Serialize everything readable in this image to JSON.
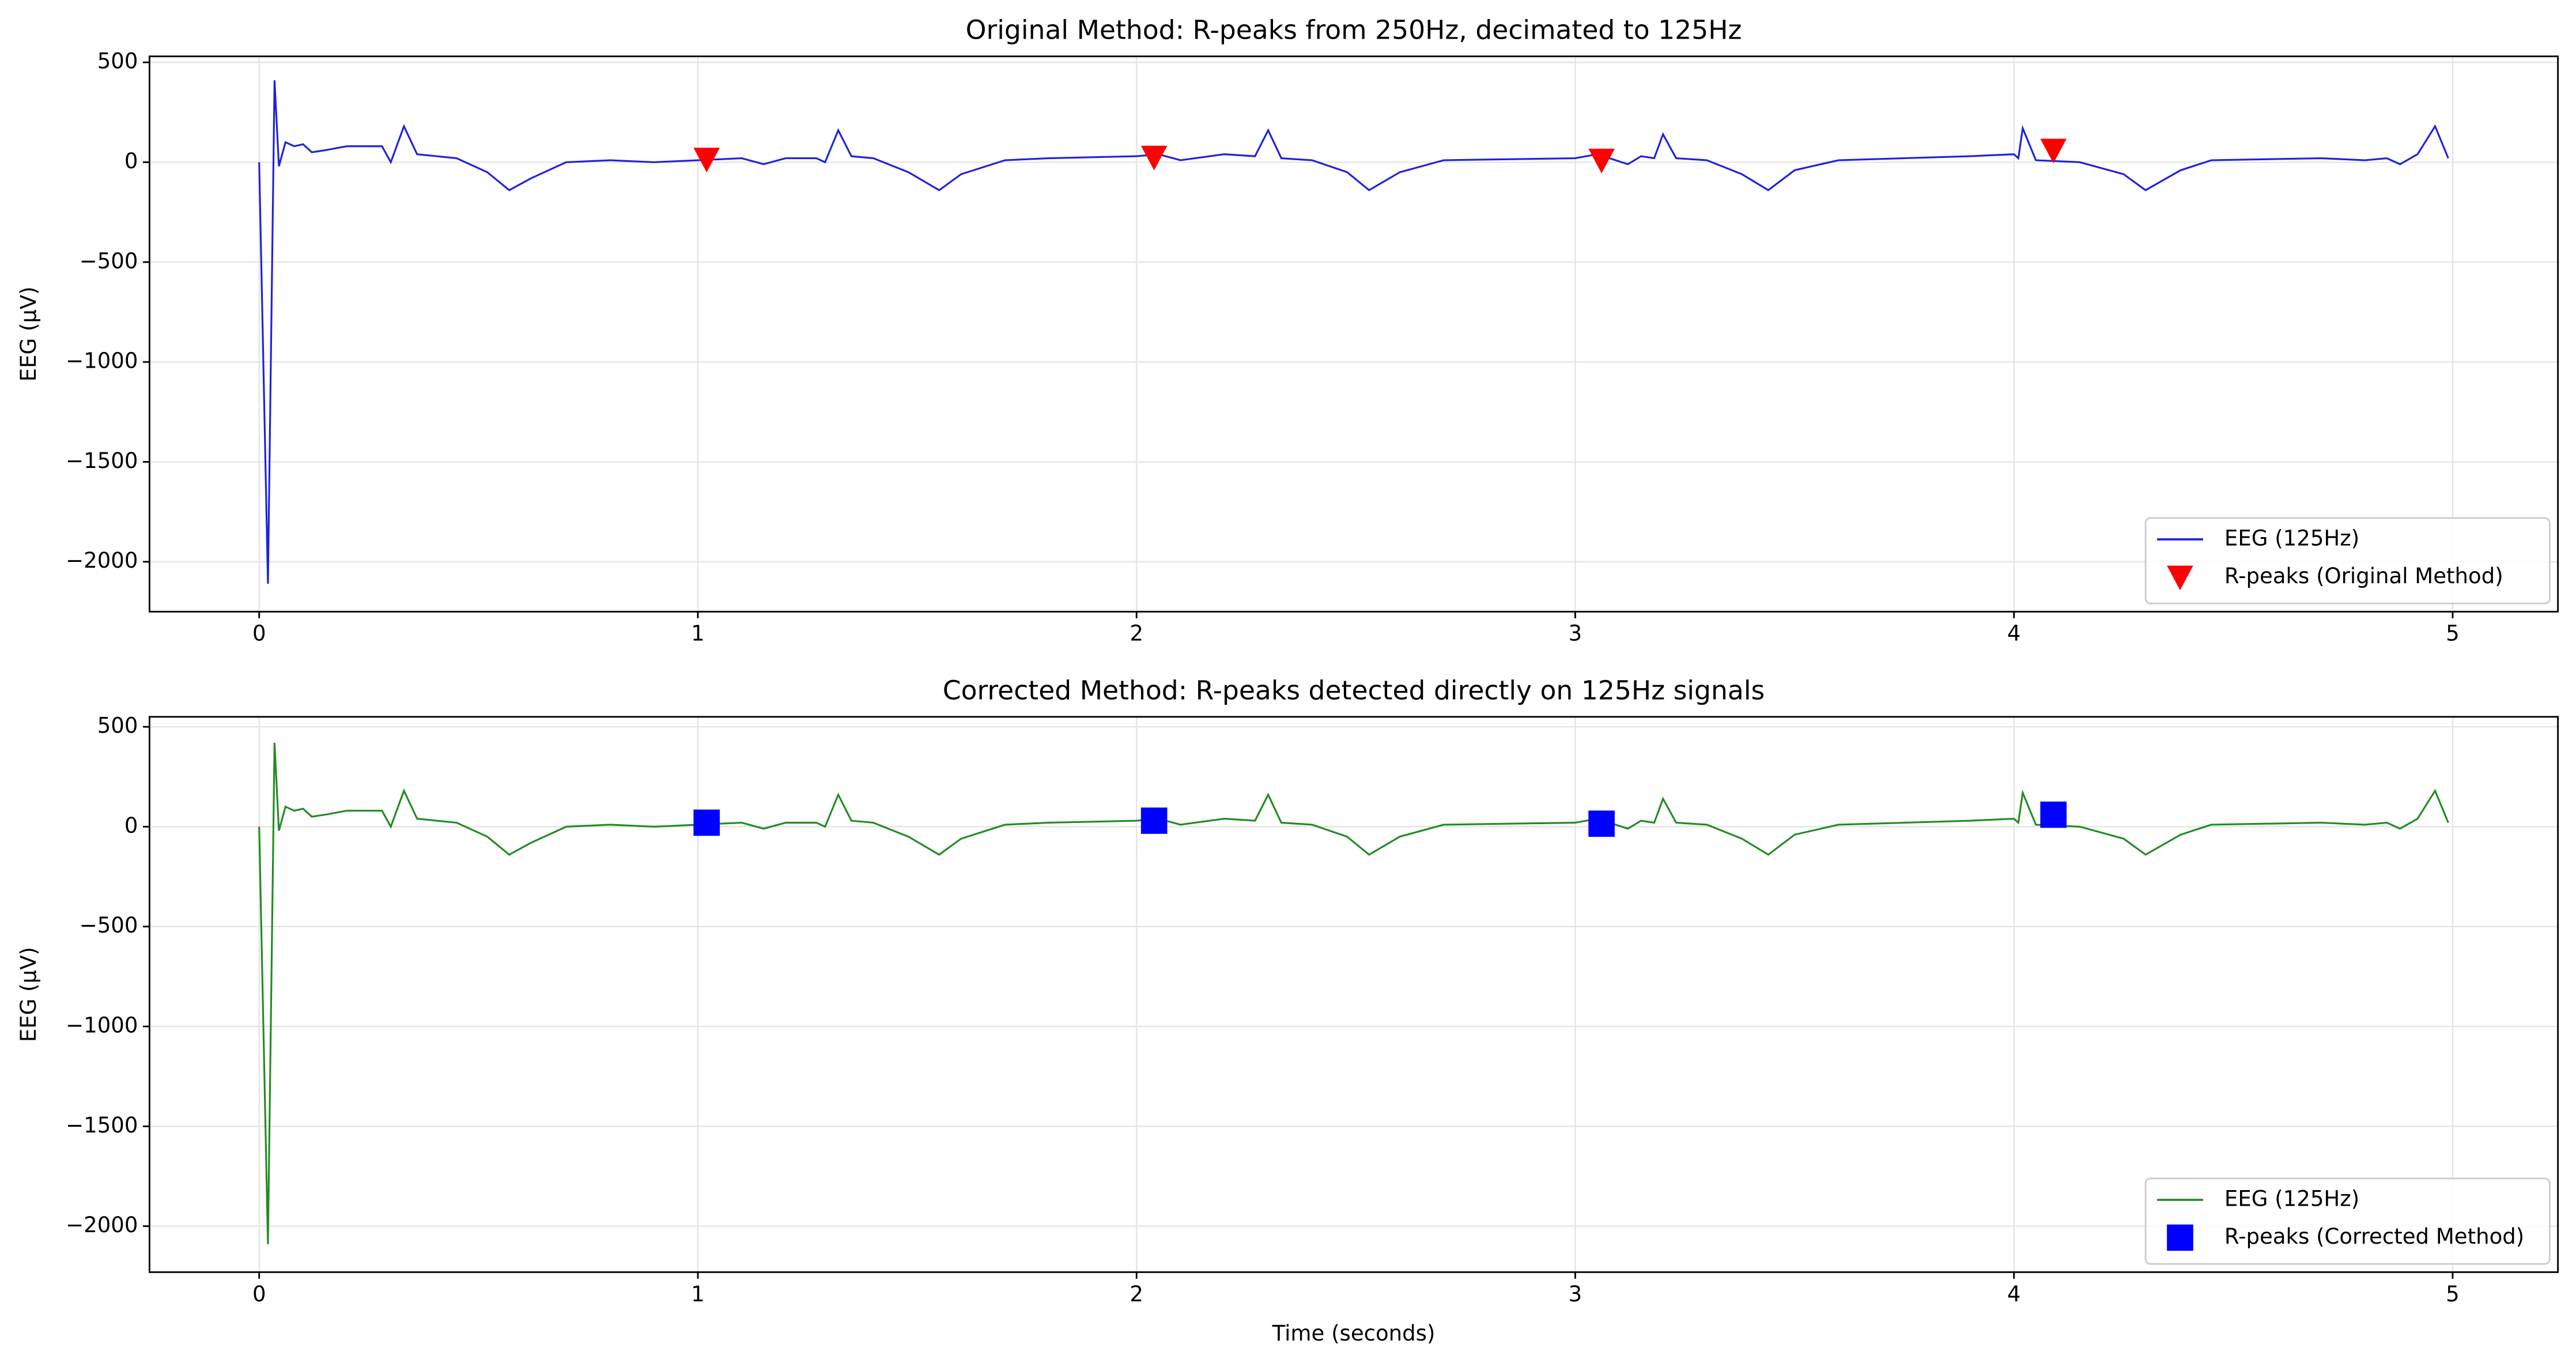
{
  "chart_data": [
    {
      "type": "line",
      "title": "Original Method: R-peaks from 250Hz, decimated to 125Hz",
      "ylabel": "EEG (µV)",
      "xlim": [
        -0.25,
        5.24
      ],
      "ylim": [
        -2250,
        530
      ],
      "xticks": [
        0,
        1,
        2,
        3,
        4,
        5
      ],
      "yticks": [
        {
          "value": -2000,
          "label": "−2000"
        },
        {
          "value": -1500,
          "label": "−1500"
        },
        {
          "value": -1000,
          "label": "−1000"
        },
        {
          "value": -500,
          "label": "−500"
        },
        0,
        500
      ],
      "grid": true,
      "legend": "lower right",
      "series": [
        {
          "name": "EEG (125Hz)",
          "color": "#2020e0",
          "x": [
            0,
            0.02,
            0.035,
            0.045,
            0.06,
            0.08,
            0.1,
            0.12,
            0.15,
            0.2,
            0.28,
            0.3,
            0.33,
            0.36,
            0.45,
            0.52,
            0.57,
            0.62,
            0.7,
            0.8,
            0.9,
            1.0,
            1.1,
            1.15,
            1.2,
            1.27,
            1.29,
            1.32,
            1.35,
            1.4,
            1.48,
            1.55,
            1.6,
            1.7,
            1.8,
            2.0,
            2.05,
            2.1,
            2.2,
            2.27,
            2.3,
            2.33,
            2.4,
            2.48,
            2.53,
            2.6,
            2.7,
            3.0,
            3.05,
            3.12,
            3.15,
            3.18,
            3.2,
            3.23,
            3.3,
            3.38,
            3.44,
            3.5,
            3.6,
            3.9,
            4.0,
            4.01,
            4.02,
            4.05,
            4.15,
            4.25,
            4.3,
            4.38,
            4.45,
            4.7,
            4.8,
            4.85,
            4.88,
            4.92,
            4.96,
            4.99
          ],
          "values": [
            0,
            -2110,
            410,
            -20,
            100,
            80,
            90,
            50,
            60,
            80,
            80,
            0,
            180,
            40,
            20,
            -50,
            -140,
            -80,
            0,
            10,
            0,
            10,
            20,
            -10,
            20,
            20,
            0,
            160,
            30,
            20,
            -50,
            -140,
            -60,
            10,
            20,
            30,
            40,
            10,
            40,
            30,
            160,
            20,
            10,
            -50,
            -140,
            -50,
            10,
            20,
            40,
            -10,
            30,
            20,
            140,
            20,
            10,
            -60,
            -140,
            -40,
            10,
            30,
            40,
            20,
            170,
            10,
            0,
            -60,
            -140,
            -40,
            10,
            20,
            10,
            20,
            -10,
            40,
            180,
            20
          ]
        },
        {
          "name": "R-peaks (Original Method)",
          "color": "#ff0000",
          "marker": "triangle-down",
          "x": [
            1.02,
            2.04,
            3.06,
            4.09
          ],
          "values": [
            15,
            25,
            10,
            60
          ]
        }
      ]
    },
    {
      "type": "line",
      "title": "Corrected Method: R-peaks detected directly on 125Hz signals",
      "ylabel": "EEG (µV)",
      "xlabel": "Time (seconds)",
      "xlim": [
        -0.25,
        5.24
      ],
      "ylim": [
        -2230,
        550
      ],
      "xticks": [
        0,
        1,
        2,
        3,
        4,
        5
      ],
      "yticks": [
        {
          "value": -2000,
          "label": "−2000"
        },
        {
          "value": -1500,
          "label": "−1500"
        },
        {
          "value": -1000,
          "label": "−1000"
        },
        {
          "value": -500,
          "label": "−500"
        },
        0,
        500
      ],
      "grid": true,
      "legend": "lower right",
      "series": [
        {
          "name": "EEG (125Hz)",
          "color": "#228b22",
          "x": [
            0,
            0.02,
            0.035,
            0.045,
            0.06,
            0.08,
            0.1,
            0.12,
            0.15,
            0.2,
            0.28,
            0.3,
            0.33,
            0.36,
            0.45,
            0.52,
            0.57,
            0.62,
            0.7,
            0.8,
            0.9,
            1.0,
            1.1,
            1.15,
            1.2,
            1.27,
            1.29,
            1.32,
            1.35,
            1.4,
            1.48,
            1.55,
            1.6,
            1.7,
            1.8,
            2.0,
            2.05,
            2.1,
            2.2,
            2.27,
            2.3,
            2.33,
            2.4,
            2.48,
            2.53,
            2.6,
            2.7,
            3.0,
            3.05,
            3.12,
            3.15,
            3.18,
            3.2,
            3.23,
            3.3,
            3.38,
            3.44,
            3.5,
            3.6,
            3.9,
            4.0,
            4.01,
            4.02,
            4.05,
            4.15,
            4.25,
            4.3,
            4.38,
            4.45,
            4.7,
            4.8,
            4.85,
            4.88,
            4.92,
            4.96,
            4.99
          ],
          "values": [
            0,
            -2090,
            420,
            -20,
            100,
            80,
            90,
            50,
            60,
            80,
            80,
            0,
            180,
            40,
            20,
            -50,
            -140,
            -80,
            0,
            10,
            0,
            10,
            20,
            -10,
            20,
            20,
            0,
            160,
            30,
            20,
            -50,
            -140,
            -60,
            10,
            20,
            30,
            40,
            10,
            40,
            30,
            160,
            20,
            10,
            -50,
            -140,
            -50,
            10,
            20,
            40,
            -10,
            30,
            20,
            140,
            20,
            10,
            -60,
            -140,
            -40,
            10,
            30,
            40,
            20,
            170,
            10,
            0,
            -60,
            -140,
            -40,
            10,
            20,
            10,
            20,
            -10,
            40,
            180,
            20
          ]
        },
        {
          "name": "R-peaks (Corrected Method)",
          "color": "#0000ff",
          "marker": "square",
          "x": [
            1.02,
            2.04,
            3.06,
            4.09
          ],
          "values": [
            20,
            30,
            15,
            60
          ]
        }
      ]
    }
  ]
}
